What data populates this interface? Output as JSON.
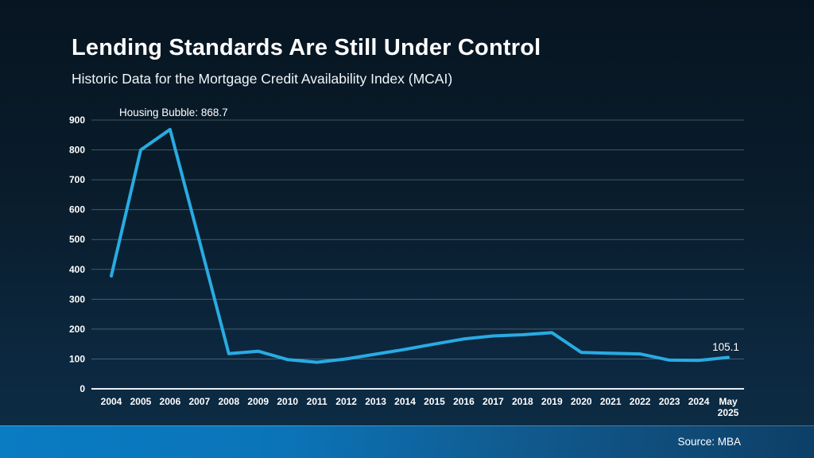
{
  "slide": {
    "title": "Lending Standards Are Still Under Control",
    "subtitle": "Historic Data for the Mortgage Credit Availability Index (MCAI)"
  },
  "chart_data": {
    "type": "line",
    "title": "Historic Data for the Mortgage Credit Availability Index (MCAI)",
    "categories": [
      "2004",
      "2005",
      "2006",
      "2007",
      "2008",
      "2009",
      "2010",
      "2011",
      "2012",
      "2013",
      "2014",
      "2015",
      "2016",
      "2017",
      "2018",
      "2019",
      "2020",
      "2021",
      "2022",
      "2023",
      "2024",
      "May 2025"
    ],
    "values": [
      378,
      800,
      868.7,
      495,
      118,
      126,
      98,
      89,
      100,
      116,
      132,
      150,
      167,
      177,
      181,
      188,
      122,
      119,
      117,
      96,
      95,
      105.1
    ],
    "annotation": "Housing Bubble: 868.7",
    "last_value_label": "105.1",
    "ylim": [
      0,
      900
    ],
    "yticks": [
      0,
      100,
      200,
      300,
      400,
      500,
      600,
      700,
      800,
      900
    ],
    "grid": true,
    "legend": "none",
    "line_color": "#29abe2",
    "gridline_color": "rgba(190,205,215,0.33)",
    "axis_line_color": "#e9eff3",
    "background_top": "#071521",
    "background_bottom": "#0d2e46"
  },
  "footer": {
    "source": "Source: MBA",
    "bar_color_left": "#0a7cc3",
    "bar_color_right": "#0d3f66"
  }
}
